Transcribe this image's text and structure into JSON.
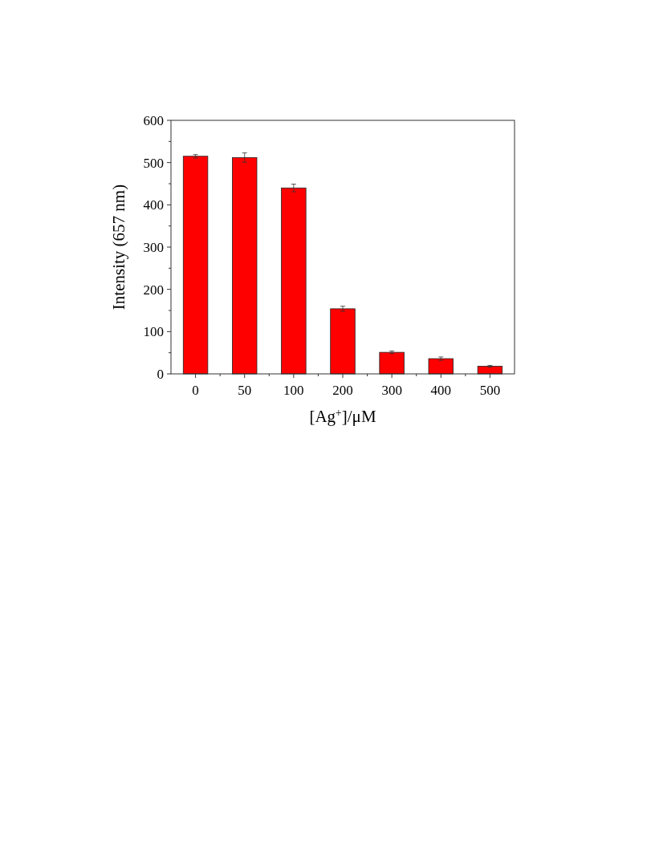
{
  "chart_data": {
    "type": "bar",
    "xlabel": "[Ag$^{+}$]/μM",
    "ylabel": "Intensity (657 nm)",
    "categories": [
      "0",
      "50",
      "100",
      "200",
      "300",
      "400",
      "500"
    ],
    "values": [
      515,
      512,
      440,
      154,
      51,
      36,
      18
    ],
    "errors": [
      4,
      11,
      9,
      6,
      3,
      4,
      2
    ],
    "color": "#ff0000",
    "ylim": [
      0,
      600
    ],
    "yticks": [
      0,
      {
        "value": 50,
        "label": null
      },
      100,
      {
        "value": 150,
        "label": null
      },
      200,
      {
        "value": 250,
        "label": null
      },
      300,
      {
        "value": 350,
        "label": null
      },
      400,
      {
        "value": 450,
        "label": null
      },
      500,
      {
        "value": 550,
        "label": null
      },
      600
    ],
    "grid": false
  }
}
